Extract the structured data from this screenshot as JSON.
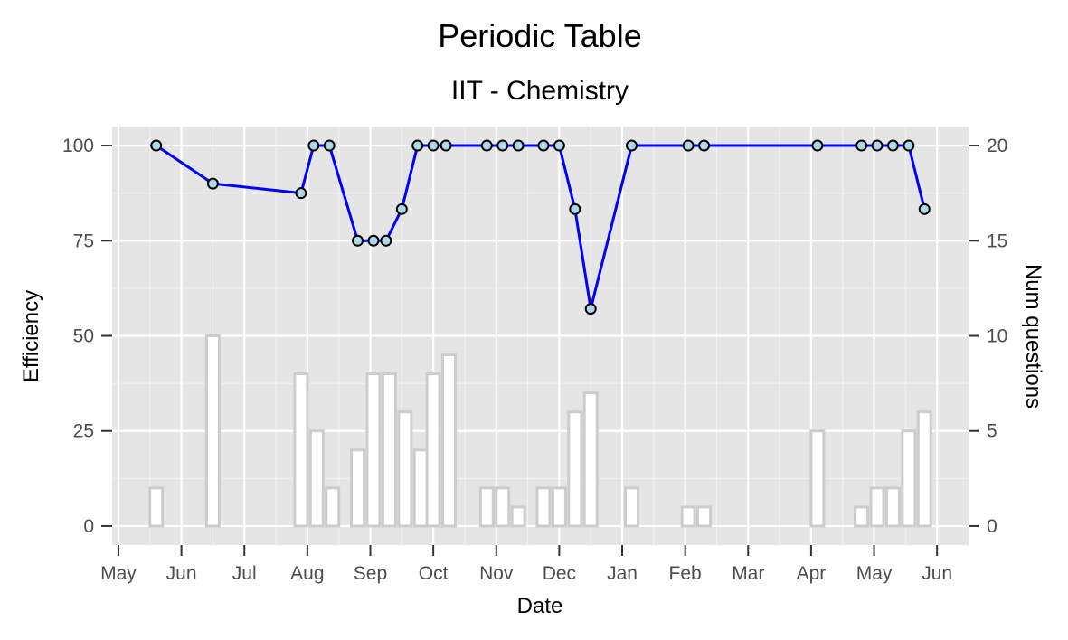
{
  "chart_data": {
    "type": "line",
    "title": "Periodic Table",
    "subtitle": "IIT - Chemistry",
    "xlabel": "Date",
    "ylabel": "Efficiency",
    "y2label": "Num questions",
    "x_tick_labels": [
      "May",
      "Jun",
      "Jul",
      "Aug",
      "Sep",
      "Oct",
      "Nov",
      "Dec",
      "Jan",
      "Feb",
      "Mar",
      "Apr",
      "May",
      "Jun"
    ],
    "y_ticks": [
      "0",
      "25",
      "50",
      "75",
      "100"
    ],
    "y2_ticks": [
      "0",
      "5",
      "10",
      "15",
      "20"
    ],
    "ylim": [
      -5,
      105
    ],
    "y2lim": [
      -1,
      21
    ],
    "grid": true,
    "line_color": "#0000ff",
    "point_fill": "#add8e6",
    "bar_outline": "#cccccc",
    "background": "#e5e5e5",
    "series": [
      {
        "type": "line",
        "axis": "left",
        "x": [
          0.6,
          1.5,
          2.9,
          3.1,
          3.35,
          3.8,
          4.05,
          4.25,
          4.5,
          4.75,
          5.0,
          5.2,
          5.85,
          6.1,
          6.35,
          6.75,
          7.0,
          7.25,
          7.5,
          8.15,
          9.05,
          9.3,
          11.1,
          11.8,
          12.05,
          12.3,
          12.55,
          12.8
        ],
        "y": [
          100,
          90,
          87.5,
          100,
          100,
          75,
          75,
          75,
          83.3,
          100,
          100,
          100,
          100,
          100,
          100,
          100,
          100,
          83.3,
          57.1,
          100,
          100,
          100,
          100,
          100,
          100,
          100,
          100,
          83.3
        ]
      },
      {
        "type": "bar",
        "axis": "right",
        "x": [
          0.6,
          1.5,
          2.9,
          3.15,
          3.4,
          3.8,
          4.05,
          4.3,
          4.55,
          4.8,
          5.0,
          5.25,
          5.85,
          6.1,
          6.35,
          6.75,
          7.0,
          7.25,
          7.5,
          8.15,
          9.05,
          9.3,
          11.1,
          11.8,
          12.05,
          12.3,
          12.55,
          12.8
        ],
        "values": [
          2,
          10,
          8,
          5,
          2,
          4,
          8,
          8,
          6,
          4,
          8,
          9,
          2,
          2,
          1,
          2,
          2,
          6,
          7,
          2,
          1,
          1,
          5,
          1,
          2,
          2,
          5,
          6
        ]
      }
    ]
  }
}
